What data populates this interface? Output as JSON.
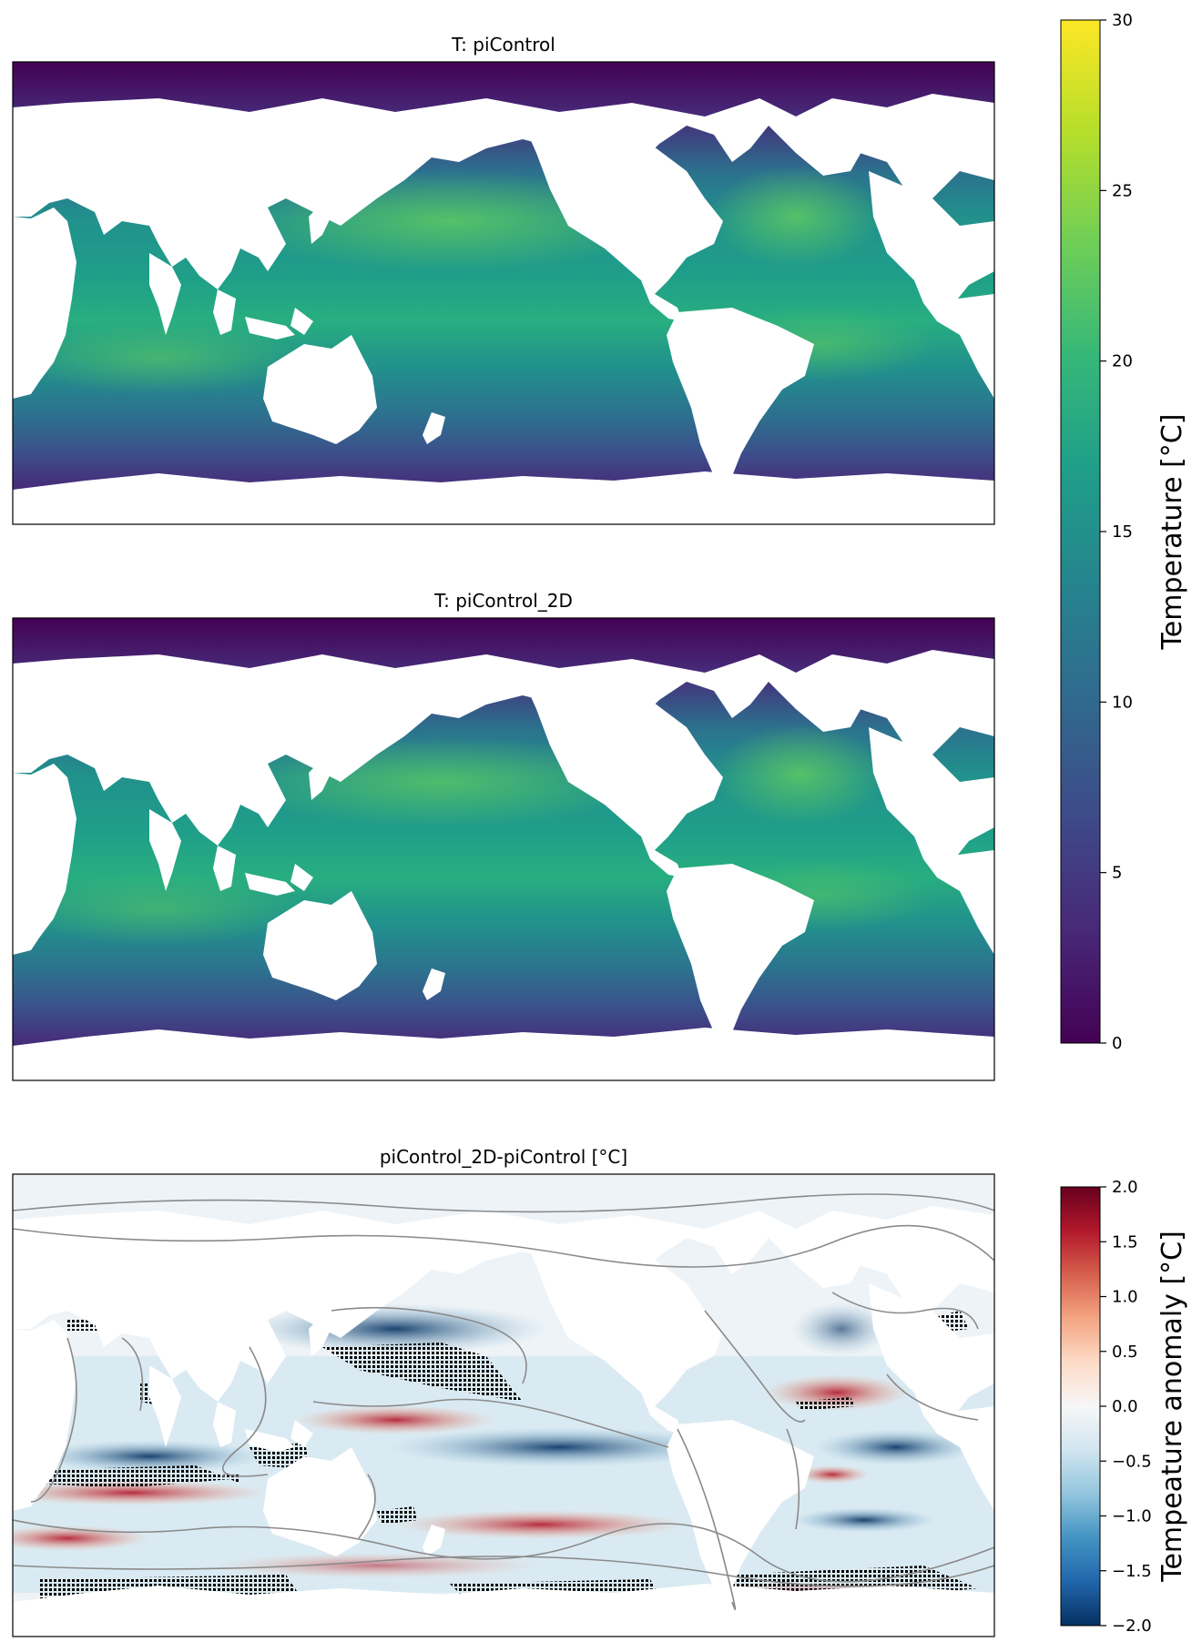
{
  "figure": {
    "panels": [
      {
        "id": "top",
        "title": "T: piControl"
      },
      {
        "id": "mid",
        "title": "T: piControl_2D"
      },
      {
        "id": "bot",
        "title": "piControl_2D-piControl [°C]"
      }
    ]
  },
  "chart_data": [
    {
      "type": "heatmap",
      "title": "T: piControl",
      "variable": "Temperature",
      "colormap": "viridis",
      "vmin": 0,
      "vmax": 30,
      "colorbar_label": "Temperature [°C]",
      "colorbar_ticks": [
        "0",
        "5",
        "10",
        "15",
        "20",
        "25",
        "30"
      ],
      "axes_ticks": "off"
    },
    {
      "type": "heatmap",
      "title": "T: piControl_2D",
      "variable": "Temperature",
      "colormap": "viridis",
      "vmin": 0,
      "vmax": 30,
      "colorbar_label": "Temperature [°C]",
      "colorbar_ticks": [
        "0",
        "5",
        "10",
        "15",
        "20",
        "25",
        "30"
      ],
      "axes_ticks": "off"
    },
    {
      "type": "heatmap",
      "title": "piControl_2D-piControl [°C]",
      "variable": "Temperature anomaly",
      "colormap": "RdBu_r",
      "vmin": -2.0,
      "vmax": 2.0,
      "colorbar_label": "Tempeature anomaly [°C]",
      "colorbar_ticks": [
        "−2.0",
        "−1.5",
        "−1.0",
        "−0.5",
        "0.0",
        "0.5",
        "1.0",
        "1.5",
        "2.0"
      ],
      "overlays": [
        "gray bathymetry contours",
        "black stippling (significance)"
      ],
      "axes_ticks": "off"
    }
  ],
  "colors": {
    "land": "#ffffff",
    "viridis": [
      "#440154",
      "#482878",
      "#3e4a89",
      "#31688e",
      "#26828e",
      "#1f9e89",
      "#35b779",
      "#6ece58",
      "#b5de2b",
      "#fde725"
    ],
    "rdbu_r": [
      "#053061",
      "#2166ac",
      "#4393c3",
      "#92c5de",
      "#d1e5f0",
      "#f7f7f7",
      "#fddbc7",
      "#f4a582",
      "#d6604d",
      "#b2182b",
      "#67001f"
    ],
    "contour": "#8a8a8a",
    "stipple": "#000000"
  }
}
